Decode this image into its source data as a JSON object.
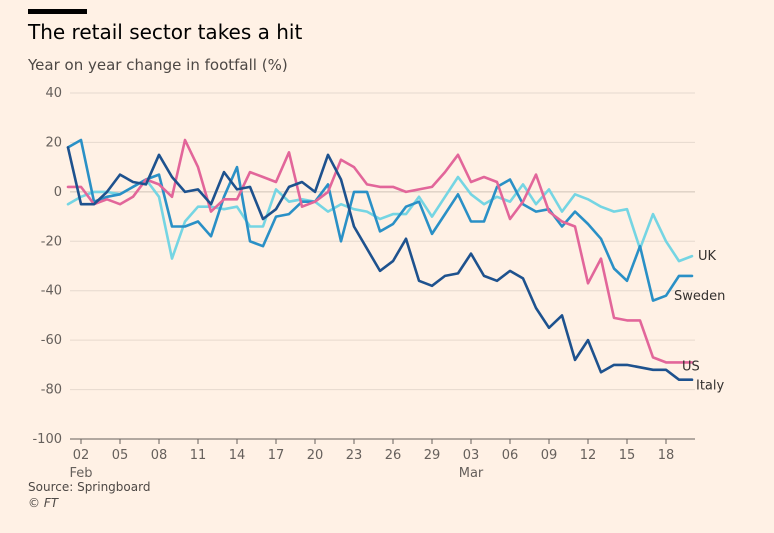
{
  "title": "The retail sector takes a hit",
  "subtitle": "Year on year change in footfall (%)",
  "source": "Source: Springboard",
  "copyright": "© FT",
  "chart_data": {
    "type": "line",
    "title": "The retail sector takes a hit",
    "ylabel": "Year on year change in footfall (%)",
    "ylim": [
      -100,
      40
    ],
    "yticks": [
      40,
      20,
      0,
      -20,
      -40,
      -60,
      -80,
      -100
    ],
    "x": [
      "Feb 01",
      "Feb 02",
      "Feb 03",
      "Feb 04",
      "Feb 05",
      "Feb 06",
      "Feb 07",
      "Feb 08",
      "Feb 09",
      "Feb 10",
      "Feb 11",
      "Feb 12",
      "Feb 13",
      "Feb 14",
      "Feb 15",
      "Feb 16",
      "Feb 17",
      "Feb 18",
      "Feb 19",
      "Feb 20",
      "Feb 21",
      "Feb 22",
      "Feb 23",
      "Feb 24",
      "Feb 25",
      "Feb 26",
      "Feb 27",
      "Feb 28",
      "Feb 29",
      "Mar 01",
      "Mar 02",
      "Mar 03",
      "Mar 04",
      "Mar 05",
      "Mar 06",
      "Mar 07",
      "Mar 08",
      "Mar 09",
      "Mar 10",
      "Mar 11",
      "Mar 12",
      "Mar 13",
      "Mar 14",
      "Mar 15",
      "Mar 16",
      "Mar 17",
      "Mar 18",
      "Mar 19",
      "Mar 20"
    ],
    "xtick_labels": [
      "02",
      "05",
      "08",
      "11",
      "14",
      "17",
      "20",
      "23",
      "26",
      "29",
      "03",
      "06",
      "09",
      "12",
      "15",
      "18"
    ],
    "month_labels": [
      "Feb",
      "Mar"
    ],
    "grid": "horizontal",
    "legend": "direct labels at line ends",
    "series": [
      {
        "name": "UK",
        "color": "#75d5e3",
        "values": [
          -5,
          -2,
          0,
          0,
          -1,
          2,
          5,
          -2,
          -27,
          -12,
          -6,
          -6,
          -7,
          -6,
          -14,
          -14,
          1,
          -4,
          -3,
          -4,
          -8,
          -5,
          -7,
          -8,
          -11,
          -9,
          -9,
          -2,
          -10,
          -2,
          6,
          -1,
          -5,
          -2,
          -4,
          3,
          -5,
          1,
          -8,
          -1,
          -3,
          -6,
          -8,
          -7,
          -23,
          -9,
          -20,
          -28,
          -26
        ]
      },
      {
        "name": "Sweden",
        "color": "#2a90c6",
        "values": [
          18,
          21,
          -4,
          -2,
          -1,
          2,
          5,
          7,
          -14,
          -14,
          -12,
          -18,
          -2,
          10,
          -20,
          -22,
          -10,
          -9,
          -4,
          -4,
          3,
          -20,
          0,
          0,
          -16,
          -13,
          -6,
          -4,
          -17,
          -9,
          -1,
          -12,
          -12,
          2,
          5,
          -5,
          -8,
          -7,
          -14,
          -8,
          -13,
          -19,
          -31,
          -36,
          -22,
          -44,
          -42,
          -34,
          -34
        ]
      },
      {
        "name": "US",
        "color": "#e2669a",
        "values": [
          2,
          2,
          -5,
          -3,
          -5,
          -2,
          5,
          3,
          -2,
          21,
          10,
          -8,
          -3,
          -3,
          8,
          6,
          4,
          16,
          -6,
          -4,
          0,
          13,
          10,
          3,
          2,
          2,
          0,
          1,
          2,
          8,
          15,
          4,
          6,
          4,
          -11,
          -4,
          7,
          -8,
          -12,
          -14,
          -37,
          -27,
          -51,
          -52,
          -52,
          -67,
          -69,
          -69,
          -69
        ]
      },
      {
        "name": "Italy",
        "color": "#1e528e",
        "values": [
          18,
          -5,
          -5,
          0,
          7,
          4,
          3,
          15,
          6,
          0,
          1,
          -5,
          8,
          1,
          2,
          -11,
          -7,
          2,
          4,
          0,
          15,
          5,
          -14,
          -23,
          -32,
          -28,
          -19,
          -36,
          -38,
          -34,
          -33,
          -25,
          -34,
          -36,
          -32,
          -35,
          -47,
          -55,
          -50,
          -68,
          -60,
          -73,
          -70,
          -70,
          -71,
          -72,
          -72,
          -76,
          -76
        ]
      }
    ]
  }
}
